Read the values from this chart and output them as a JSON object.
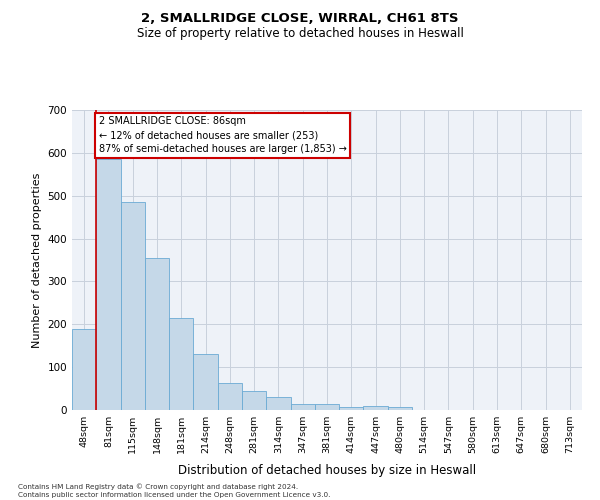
{
  "title1": "2, SMALLRIDGE CLOSE, WIRRAL, CH61 8TS",
  "title2": "Size of property relative to detached houses in Heswall",
  "xlabel": "Distribution of detached houses by size in Heswall",
  "ylabel": "Number of detached properties",
  "categories": [
    "48sqm",
    "81sqm",
    "115sqm",
    "148sqm",
    "181sqm",
    "214sqm",
    "248sqm",
    "281sqm",
    "314sqm",
    "347sqm",
    "381sqm",
    "414sqm",
    "447sqm",
    "480sqm",
    "514sqm",
    "547sqm",
    "580sqm",
    "613sqm",
    "647sqm",
    "680sqm",
    "713sqm"
  ],
  "values": [
    190,
    585,
    485,
    355,
    215,
    130,
    63,
    45,
    30,
    15,
    15,
    8,
    10,
    8,
    0,
    0,
    0,
    0,
    0,
    0,
    0
  ],
  "bar_color": "#c5d8e8",
  "bar_edgecolor": "#6aaad4",
  "highlight_index": 1,
  "highlight_line_color": "#cc0000",
  "annotation_text": "2 SMALLRIDGE CLOSE: 86sqm\n← 12% of detached houses are smaller (253)\n87% of semi-detached houses are larger (1,853) →",
  "annotation_box_edgecolor": "#cc0000",
  "ylim": [
    0,
    700
  ],
  "yticks": [
    0,
    100,
    200,
    300,
    400,
    500,
    600,
    700
  ],
  "grid_color": "#c8d0dc",
  "bg_color": "#eef2f8",
  "footnote": "Contains HM Land Registry data © Crown copyright and database right 2024.\nContains public sector information licensed under the Open Government Licence v3.0."
}
